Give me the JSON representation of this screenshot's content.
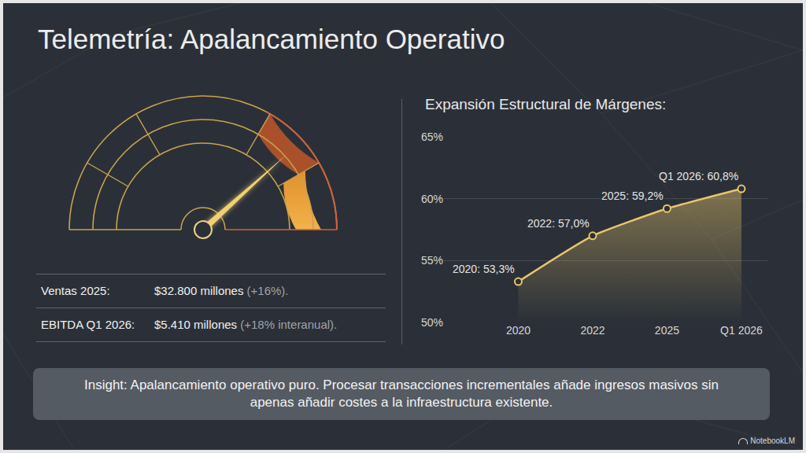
{
  "title": "Telemetría: Apalancamiento Operativo",
  "stats": [
    {
      "label": "Ventas 2025:",
      "value": "$32.800 millones",
      "change": "(+16%)."
    },
    {
      "label": "EBITDA Q1 2026:",
      "value": "$5.410 millones",
      "change": "(+18% interanual)."
    }
  ],
  "insight": "Insight: Apalancamiento operativo puro. Procesar transacciones incrementales añade ingresos masivos sin apenas añadir costes a la infraestructura existente.",
  "watermark": "NotebookLM",
  "chart_data": {
    "type": "line",
    "title": "Expansión Estructural de Márgenes:",
    "categories": [
      "2020",
      "2022",
      "2025",
      "Q1 2026"
    ],
    "values": [
      53.3,
      57.0,
      59.2,
      60.8
    ],
    "value_labels": [
      "2020: 53,3%",
      "2022: 57,0%",
      "2025: 59,2%",
      "Q1 2026: 60,8%"
    ],
    "data_labels": true,
    "color": "#e8c56a",
    "marker": "circle",
    "ylim": [
      50,
      65
    ],
    "yticks": [
      {
        "value": 50,
        "label": "50%"
      },
      {
        "value": 55,
        "label": "55%"
      },
      {
        "value": 60,
        "label": "60%"
      },
      {
        "value": 65,
        "label": "65%"
      }
    ],
    "grid": true
  }
}
